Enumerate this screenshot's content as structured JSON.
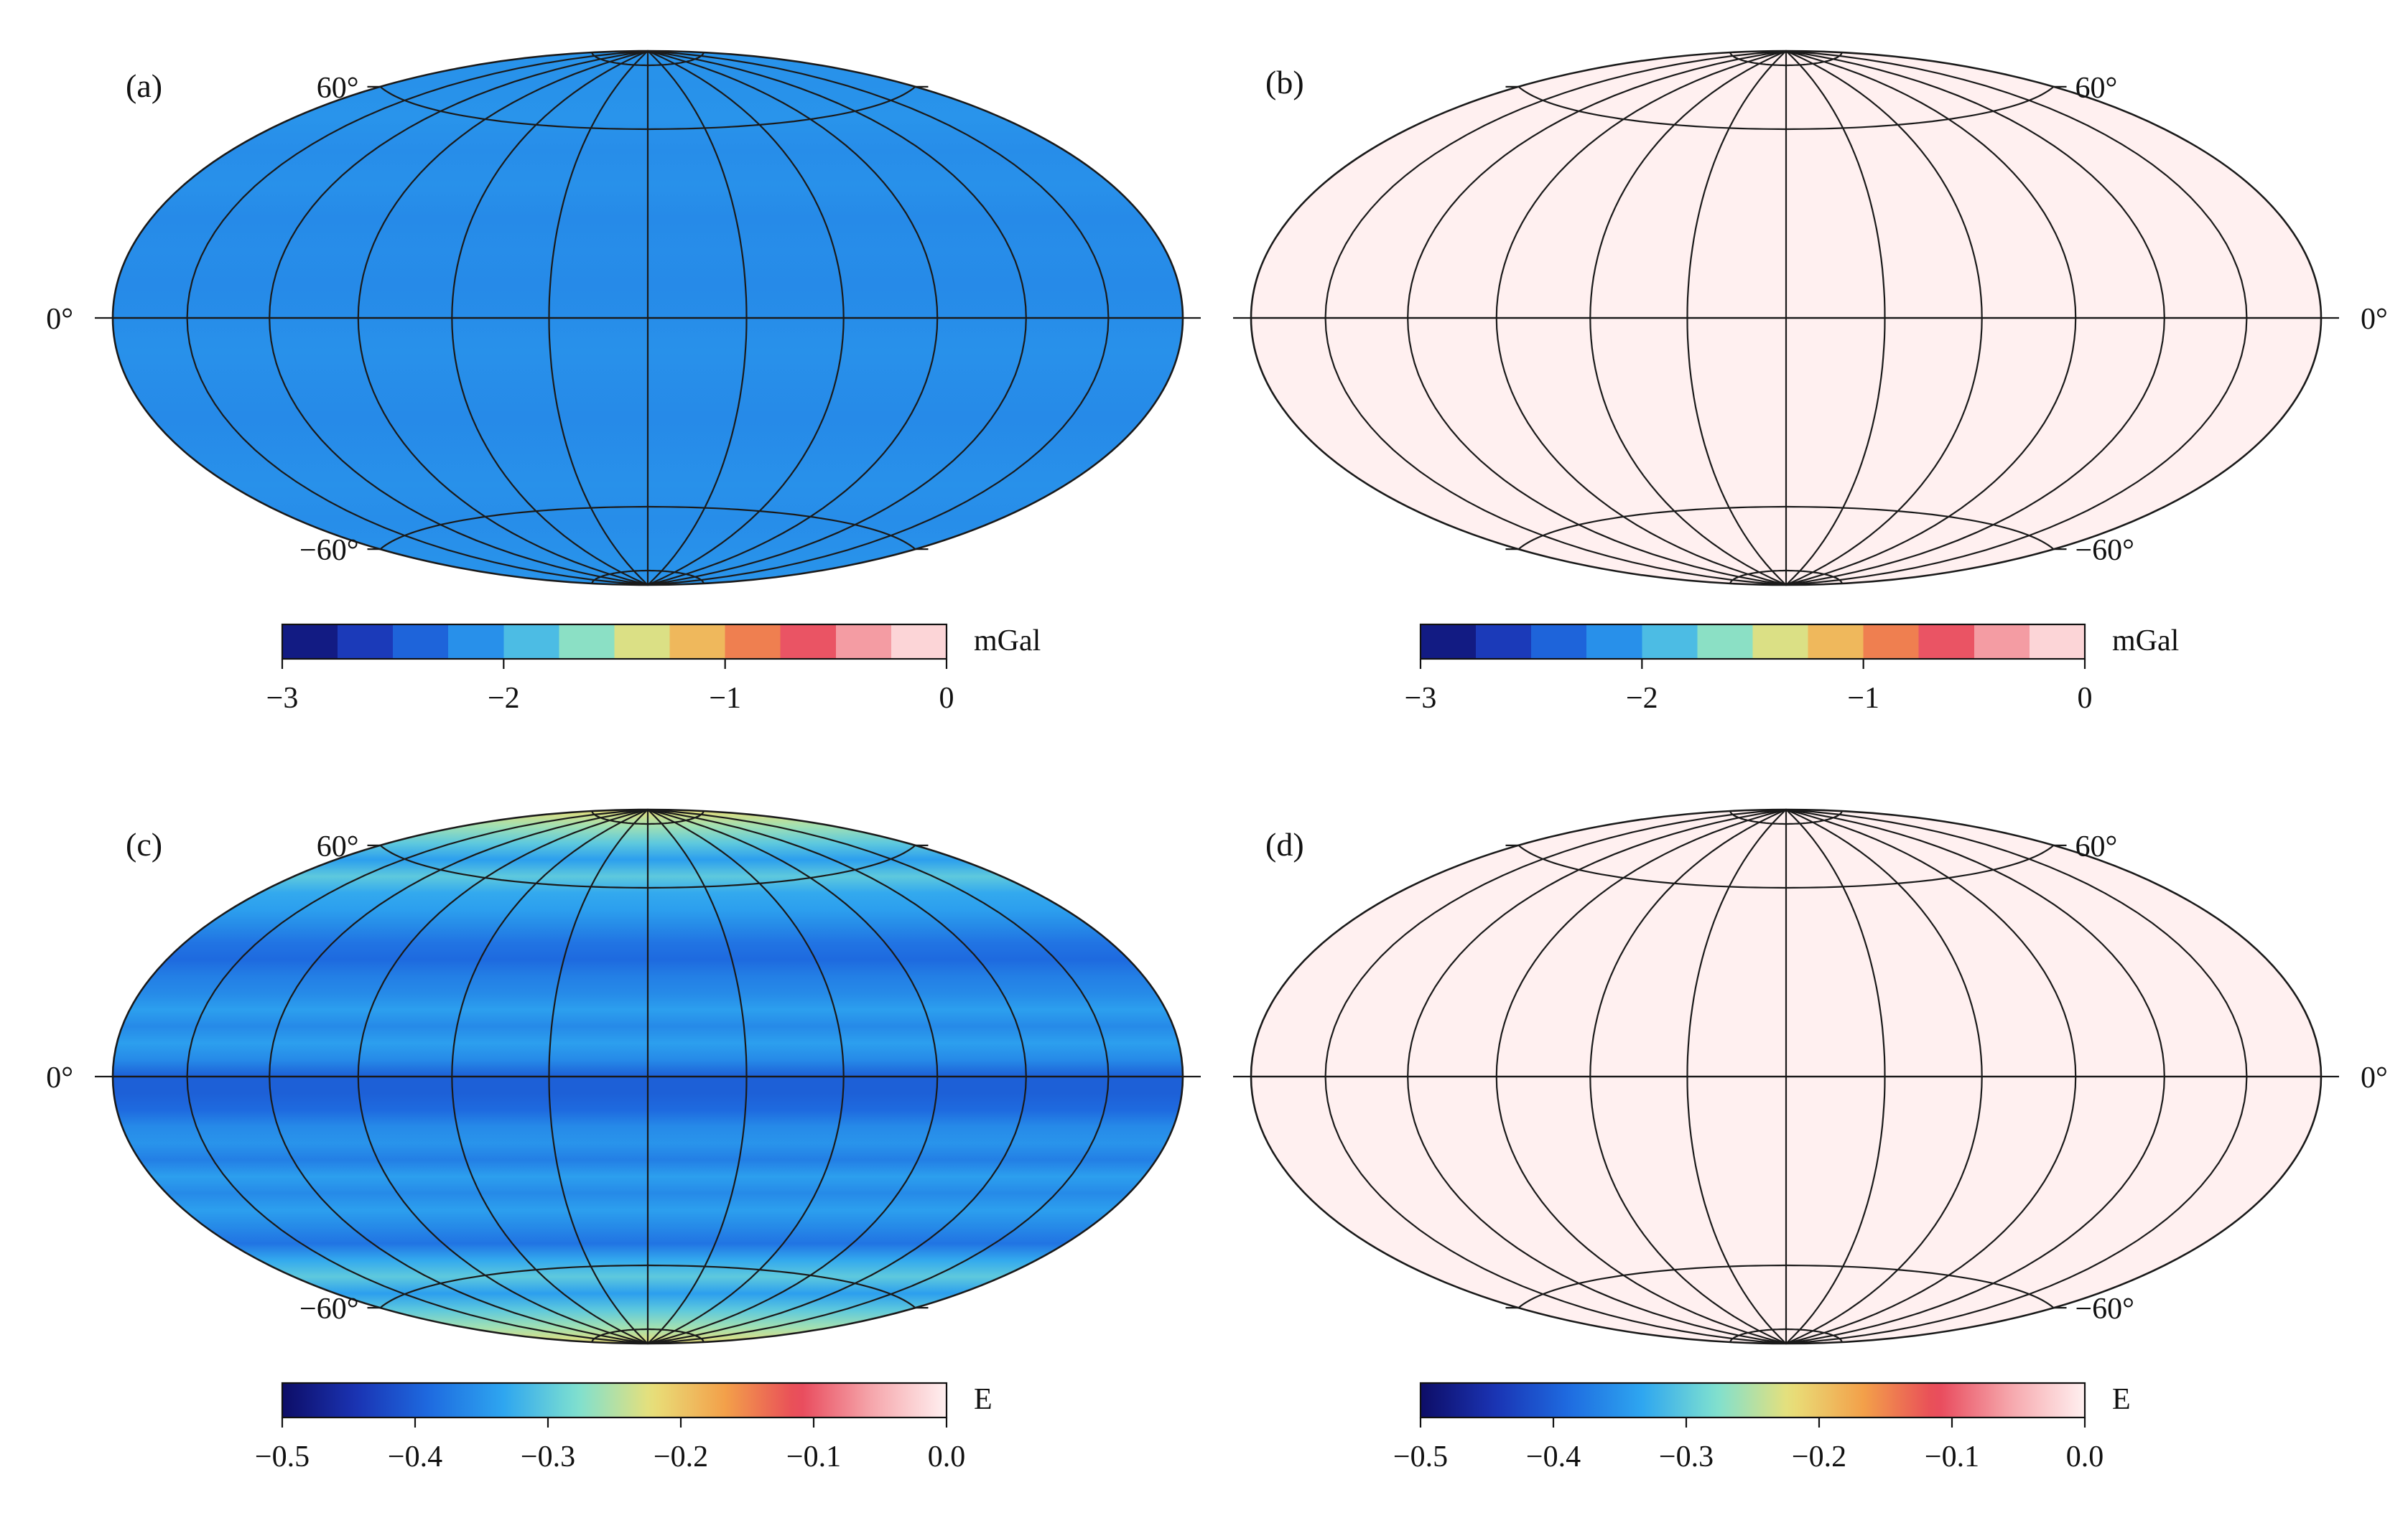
{
  "colors": {
    "colormap": [
      "#0d0d66",
      "#1a33b3",
      "#1e6be0",
      "#2ea6f0",
      "#7ee0d0",
      "#e8e07a",
      "#f3a04a",
      "#e8485a",
      "#f6a8ad",
      "#fff0f0"
    ],
    "graticule": "#1a1a1a",
    "outline": "#1a1a1a"
  },
  "chart_data": [
    {
      "type": "heatmap",
      "panel": "(a)",
      "projection": "Hammer-Aitoff",
      "lat_labels": [
        "60°",
        "0°",
        "−60°"
      ],
      "lat_label_side": "left",
      "field_profile": [
        -2.1,
        -2.12,
        -2.1,
        -2.14,
        -2.12,
        -2.16,
        -2.14,
        -2.16,
        -2.14,
        -2.12,
        -2.14,
        -2.16,
        -2.14,
        -2.12,
        -2.14,
        -2.12,
        -2.1
      ],
      "colorbar": {
        "label": "mGal",
        "range": [
          -3,
          0
        ],
        "ticks": [
          -3,
          -2,
          -1,
          0
        ],
        "tick_labels": [
          "−3",
          "−2",
          "−1",
          "0"
        ],
        "stepped": true
      }
    },
    {
      "type": "heatmap",
      "panel": "(b)",
      "projection": "Hammer-Aitoff",
      "lat_labels": [
        "60°",
        "0°",
        "−60°"
      ],
      "lat_label_side": "right",
      "field_profile": [
        0,
        0,
        0
      ],
      "colorbar": {
        "label": "mGal",
        "range": [
          -3,
          0
        ],
        "ticks": [
          -3,
          -2,
          -1,
          0
        ],
        "tick_labels": [
          "−3",
          "−2",
          "−1",
          "0"
        ],
        "stepped": true
      }
    },
    {
      "type": "heatmap",
      "panel": "(c)",
      "projection": "Hammer-Aitoff",
      "lat_labels": [
        "60°",
        "0°",
        "−60°"
      ],
      "lat_label_side": "left",
      "field_profile": [
        -0.22,
        -0.26,
        -0.3,
        -0.34,
        -0.3,
        -0.33,
        -0.34,
        -0.36,
        -0.38,
        -0.39,
        -0.37,
        -0.36,
        -0.34,
        -0.36,
        -0.34,
        -0.36,
        -0.4,
        -0.4,
        -0.39,
        -0.36,
        -0.35,
        -0.37,
        -0.34,
        -0.36,
        -0.34,
        -0.36,
        -0.38,
        -0.33,
        -0.3,
        -0.34,
        -0.3,
        -0.26,
        -0.22
      ],
      "colorbar": {
        "label": "E",
        "range": [
          -0.5,
          0.0
        ],
        "ticks": [
          -0.5,
          -0.4,
          -0.3,
          -0.2,
          -0.1,
          0.0
        ],
        "tick_labels": [
          "−0.5",
          "−0.4",
          "−0.3",
          "−0.2",
          "−0.1",
          "0.0"
        ],
        "stepped": false
      }
    },
    {
      "type": "heatmap",
      "panel": "(d)",
      "projection": "Hammer-Aitoff",
      "lat_labels": [
        "60°",
        "0°",
        "−60°"
      ],
      "lat_label_side": "right",
      "field_profile": [
        0,
        0,
        0
      ],
      "colorbar": {
        "label": "E",
        "range": [
          -0.5,
          0.0
        ],
        "ticks": [
          -0.5,
          -0.4,
          -0.3,
          -0.2,
          -0.1,
          0.0
        ],
        "tick_labels": [
          "−0.5",
          "−0.4",
          "−0.3",
          "−0.2",
          "−0.1",
          "0.0"
        ],
        "stepped": false
      }
    }
  ]
}
